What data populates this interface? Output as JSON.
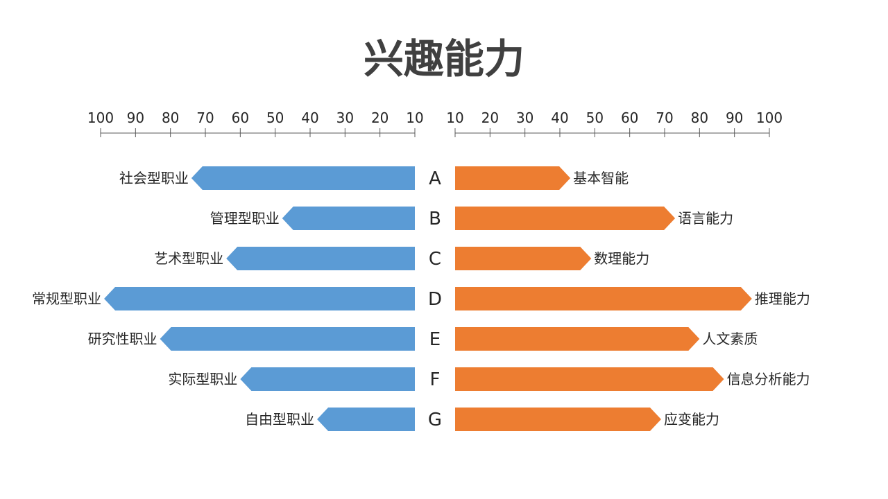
{
  "title": "兴趣能力",
  "chart_data": {
    "type": "bar",
    "title": "兴趣能力",
    "layout": "butterfly",
    "ticks": [
      "10",
      "20",
      "30",
      "40",
      "50",
      "60",
      "70",
      "80",
      "90",
      "100"
    ],
    "xlim": [
      10,
      100
    ],
    "categories": [
      "A",
      "B",
      "C",
      "D",
      "E",
      "F",
      "G"
    ],
    "series": [
      {
        "side": "left",
        "color": "#5B9BD5",
        "labels": [
          "社会型职业",
          "管理型职业",
          "艺术型职业",
          "常规型职业",
          "研究性职业",
          "实际型职业",
          "自由型职业"
        ],
        "values": [
          74,
          48,
          64,
          99,
          83,
          60,
          38
        ]
      },
      {
        "side": "right",
        "color": "#ED7D31",
        "labels": [
          "基本智能",
          "语言能力",
          "数理能力",
          "推理能力",
          "人文素质",
          "信息分析能力",
          "应变能力"
        ],
        "values": [
          43,
          73,
          49,
          95,
          80,
          87,
          69
        ]
      }
    ]
  }
}
